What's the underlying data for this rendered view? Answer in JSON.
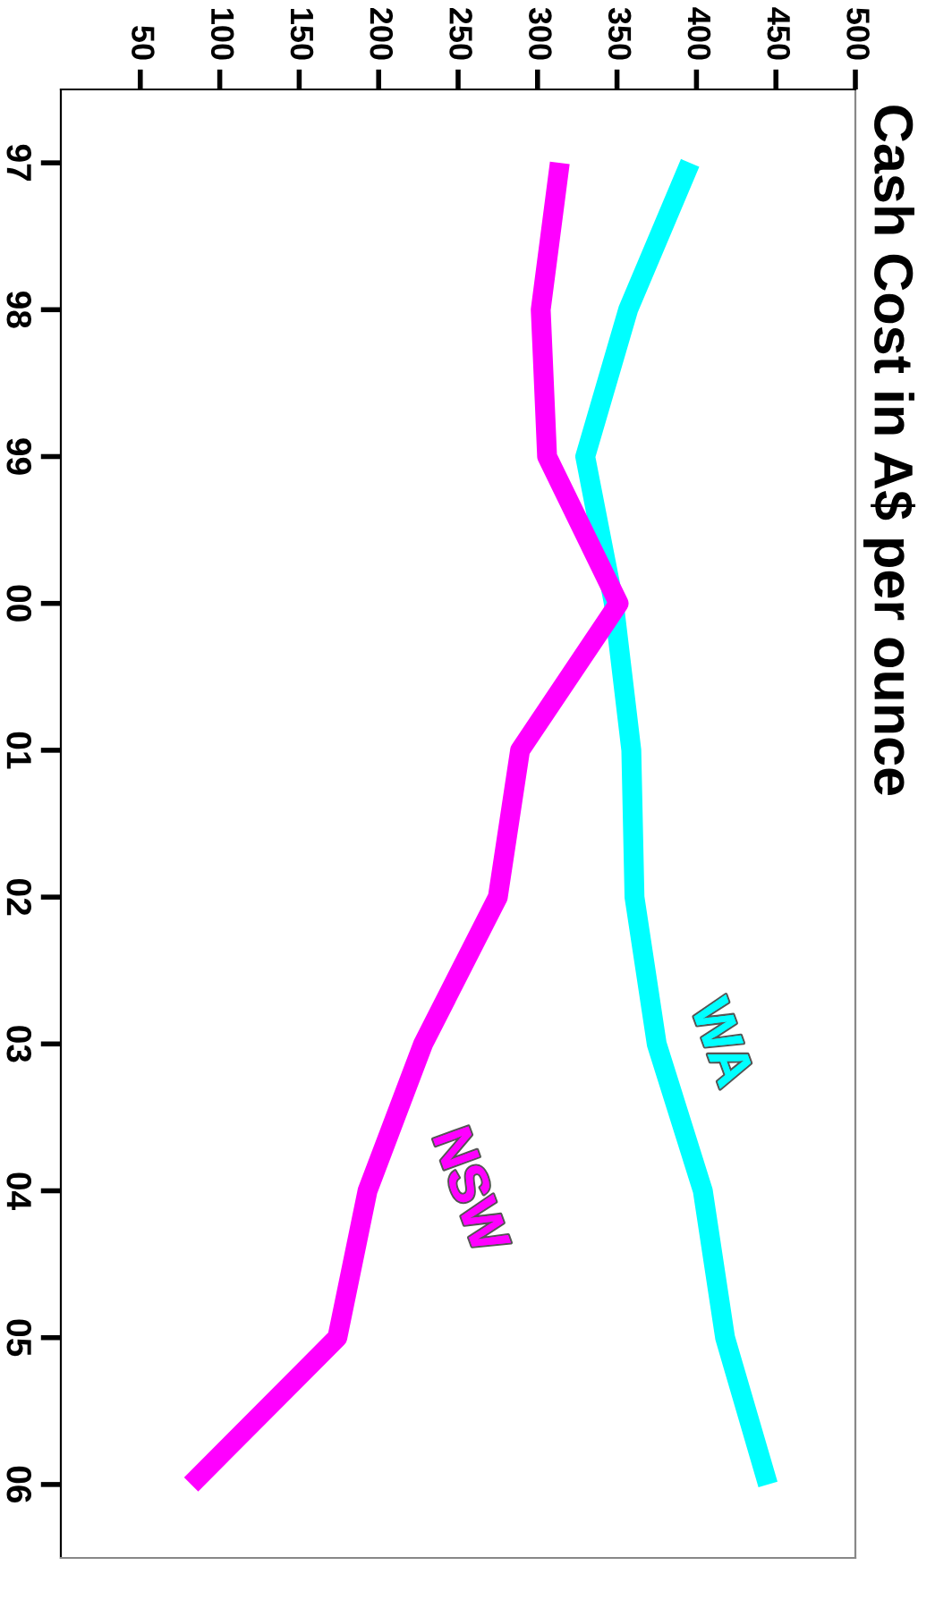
{
  "chart_data": {
    "type": "line",
    "orientation": "horizontal",
    "title": "Cash Cost in A$ per ounce",
    "categories": [
      "97",
      "98",
      "99",
      "00",
      "01",
      "02",
      "03",
      "04",
      "05",
      "06"
    ],
    "series": [
      {
        "name": "WA",
        "color": "#00ffff",
        "values": [
          396,
          357,
          330,
          348,
          359,
          361,
          375,
          404,
          418,
          445
        ]
      },
      {
        "name": "NSW",
        "color": "#ff00ff",
        "values": [
          314,
          302,
          306,
          351,
          289,
          275,
          228,
          193,
          174,
          82
        ]
      }
    ],
    "xlim": [
      0,
      500
    ],
    "xticks": [
      50,
      100,
      150,
      200,
      250,
      300,
      350,
      400,
      450,
      500
    ],
    "grid": false,
    "legend": false,
    "marker": "none",
    "line_style": "solid"
  }
}
